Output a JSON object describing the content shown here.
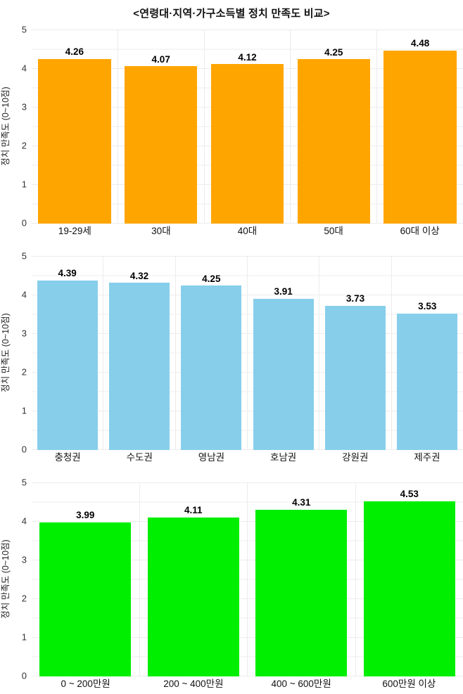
{
  "title": "<연령대·지역·가구소득별 정치 만족도 비교>",
  "chart_data": [
    {
      "type": "bar",
      "name": "age-group",
      "categories": [
        "19-29세",
        "30대",
        "40대",
        "50대",
        "60대 이상"
      ],
      "values": [
        4.26,
        4.07,
        4.12,
        4.25,
        4.48
      ],
      "bar_labels": [
        "4.26",
        "4.07",
        "4.12",
        "4.25",
        "4.48"
      ],
      "title": "",
      "xlabel": "",
      "ylabel": "정치 만족도 (0~10점)",
      "ylim": [
        0,
        5
      ],
      "yticks": [
        0,
        1,
        2,
        3,
        4,
        5
      ],
      "grid": "on",
      "legend": "none",
      "bar_color": "#ffa500"
    },
    {
      "type": "bar",
      "name": "region",
      "categories": [
        "충청권",
        "수도권",
        "영남권",
        "호남권",
        "강원권",
        "제주권"
      ],
      "values": [
        4.39,
        4.32,
        4.25,
        3.91,
        3.73,
        3.53
      ],
      "bar_labels": [
        "4.39",
        "4.32",
        "4.25",
        "3.91",
        "3.73",
        "3.53"
      ],
      "title": "",
      "xlabel": "",
      "ylabel": "정치 만족도 (0~10점)",
      "ylim": [
        0,
        5
      ],
      "yticks": [
        0,
        1,
        2,
        3,
        4,
        5
      ],
      "grid": "on",
      "legend": "none",
      "bar_color": "#87ceeb"
    },
    {
      "type": "bar",
      "name": "household-income",
      "categories": [
        "0 ~ 200만원",
        "200 ~ 400만원",
        "400 ~ 600만원",
        "600만원 이상"
      ],
      "values": [
        3.99,
        4.11,
        4.31,
        4.53
      ],
      "bar_labels": [
        "3.99",
        "4.11",
        "4.31",
        "4.53"
      ],
      "title": "",
      "xlabel": "",
      "ylabel": "정치 만족도 (0~10점)",
      "ylim": [
        0,
        5
      ],
      "yticks": [
        0,
        1,
        2,
        3,
        4,
        5
      ],
      "grid": "on",
      "legend": "none",
      "bar_color": "#00ee00"
    }
  ],
  "colors": {
    "grid": "#ececec",
    "text": "#111111",
    "bar_age": "#ffa500",
    "bar_region": "#87ceeb",
    "bar_income": "#00ee00"
  }
}
